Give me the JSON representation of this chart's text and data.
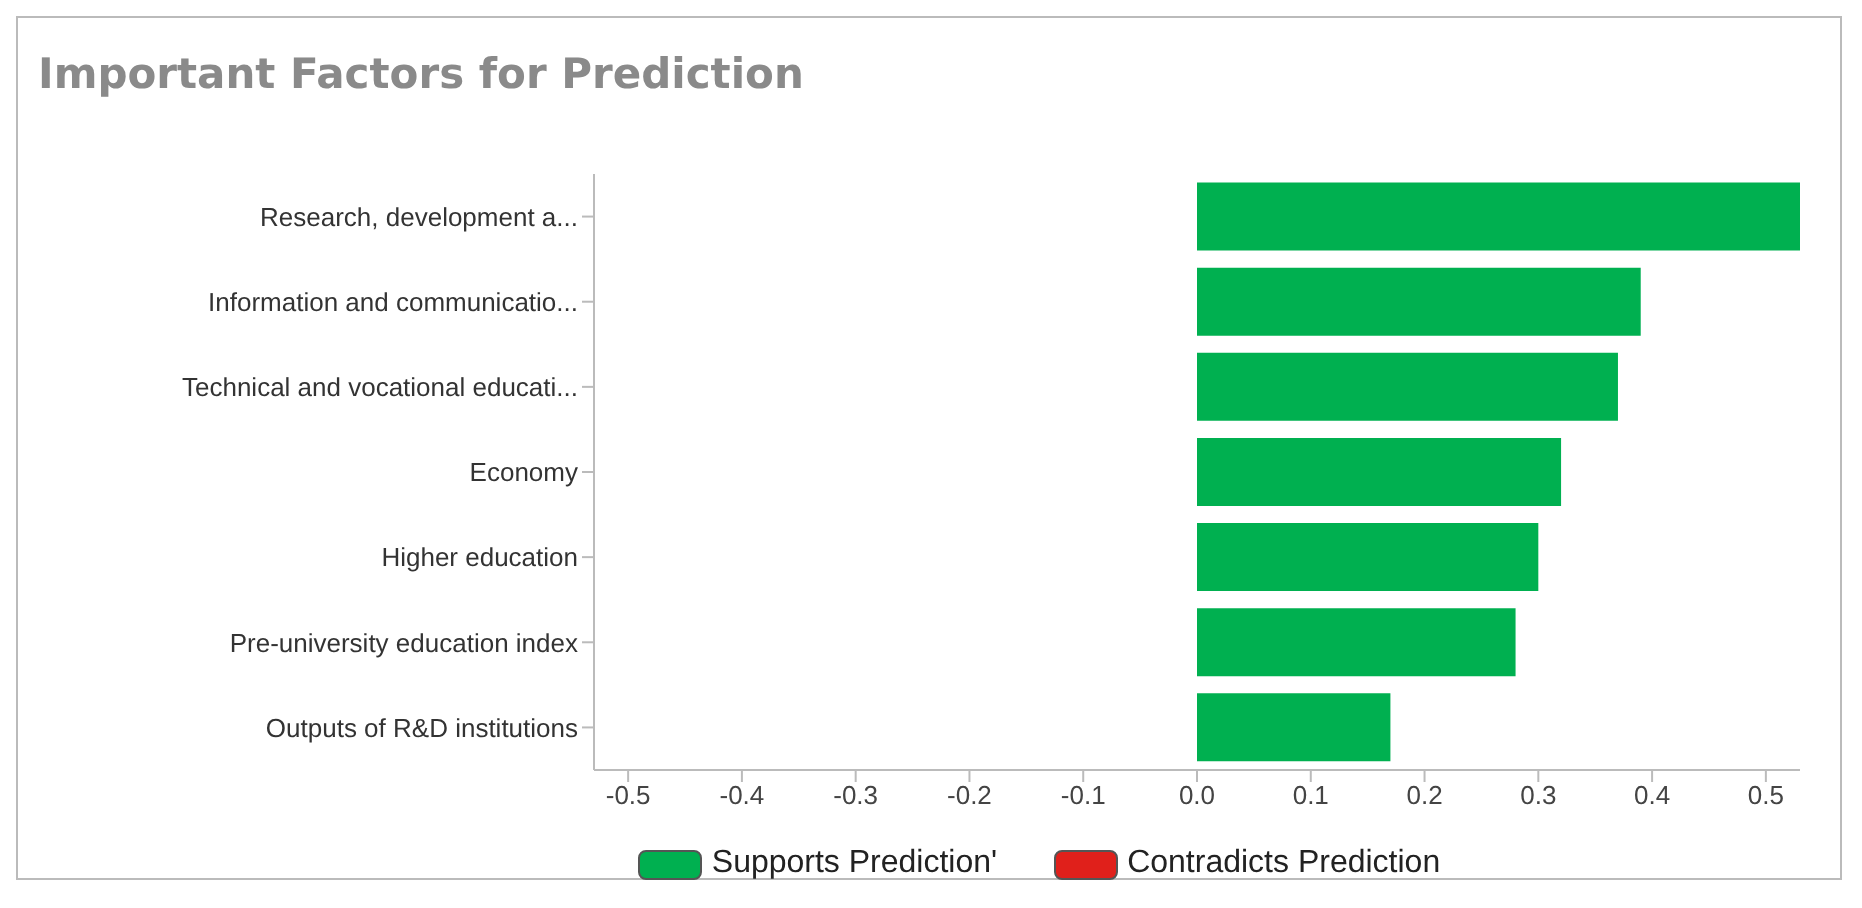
{
  "chart_data": {
    "type": "bar",
    "orientation": "horizontal",
    "stacked": true,
    "title": "Important Factors for Prediction",
    "categories": [
      "Research, development a...",
      "Information and communicatio...",
      "Technical and vocational educati...",
      "Economy",
      "Higher education",
      "Pre-university education index",
      "Outputs of R&D institutions"
    ],
    "series": [
      {
        "name": "Supports Prediction'",
        "color": "#00b050",
        "values": [
          0.53,
          0.39,
          0.37,
          0.32,
          0.3,
          0.28,
          0.17
        ]
      },
      {
        "name": "Contradicts Prediction",
        "color": "#e0201b",
        "values": [
          null,
          null,
          null,
          null,
          null,
          null,
          null
        ]
      }
    ],
    "xlim": [
      -0.53,
      0.53
    ],
    "xticks": [
      -0.5,
      -0.4,
      -0.3,
      -0.2,
      -0.1,
      {
        "value": 0,
        "label": "0.0"
      },
      0.1,
      0.2,
      0.3,
      0.4,
      0.5
    ],
    "grid": false,
    "legend": "bottom"
  }
}
